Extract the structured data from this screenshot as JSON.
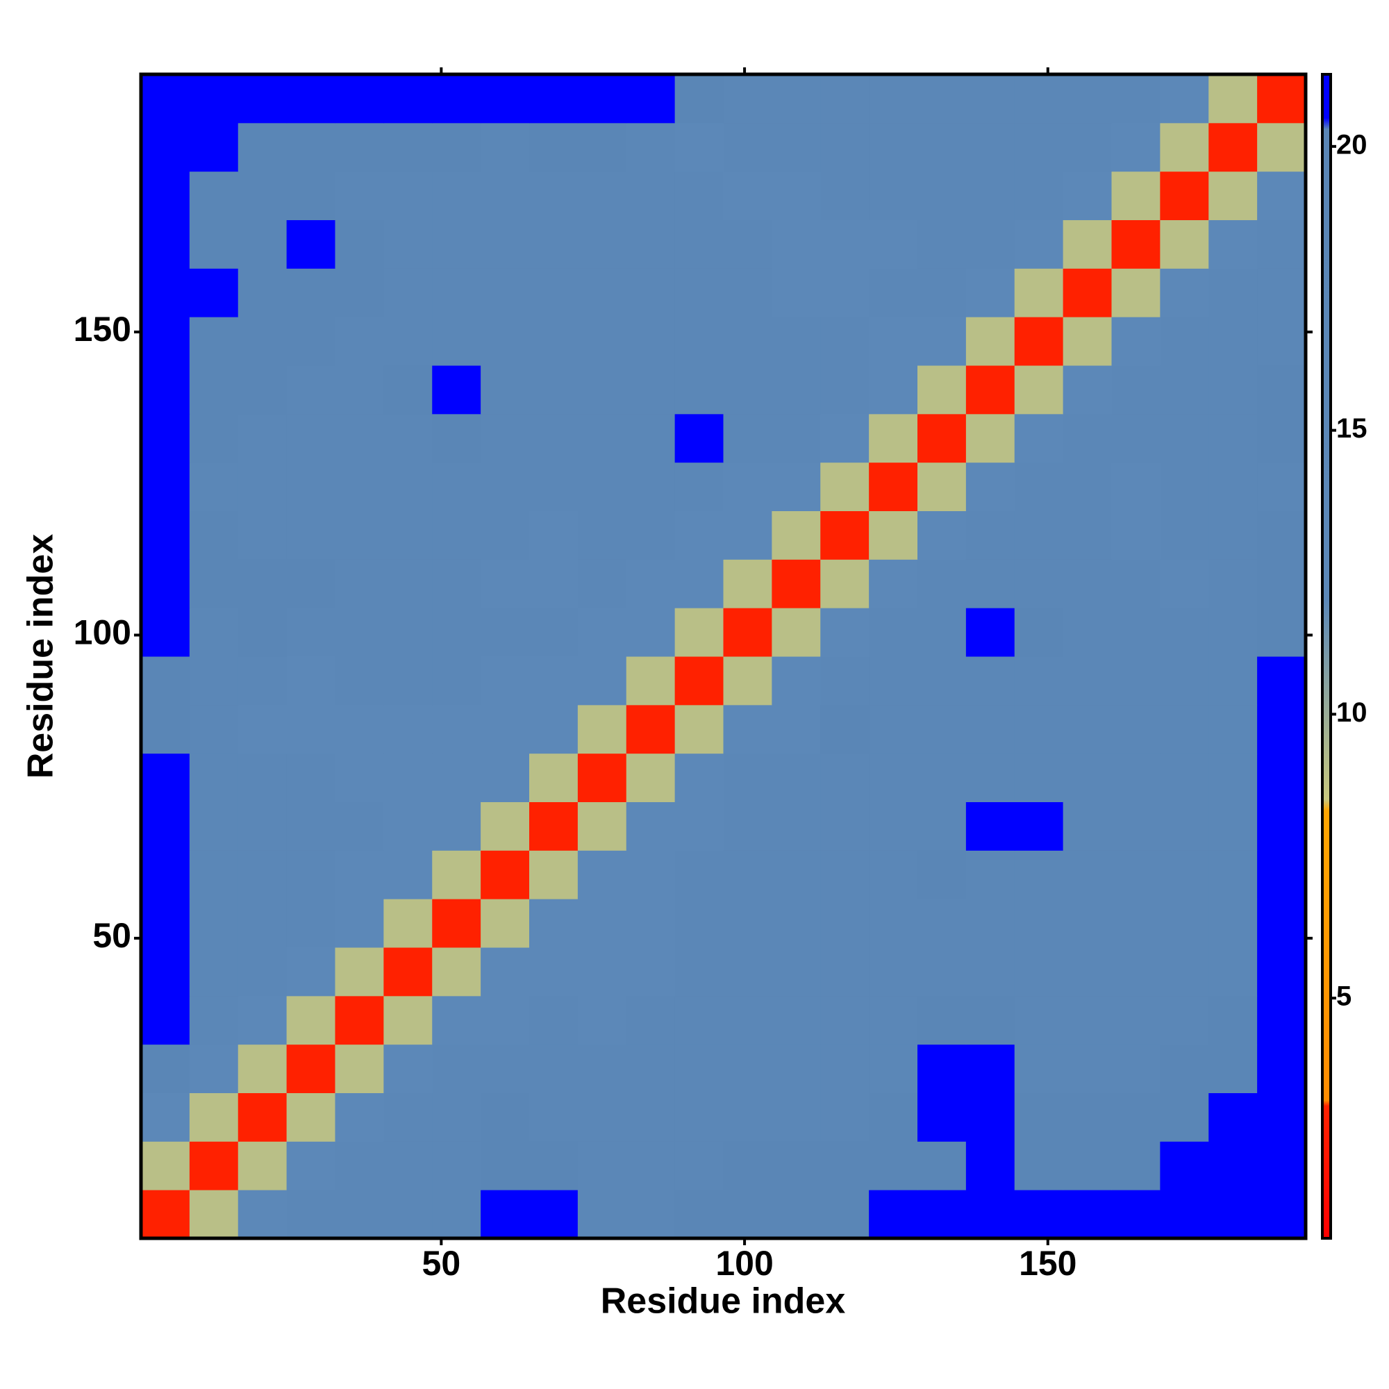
{
  "chart_data": {
    "type": "heatmap",
    "x_label": "Residue index",
    "y_label": "Residue index",
    "x": [
      4.5,
      12.5,
      20.5,
      28.5,
      36.5,
      44.5,
      52.5,
      60.5,
      68.5,
      76.5,
      84.5,
      92.5,
      100.5,
      108.5,
      116.5,
      124.5,
      132.5,
      140.5,
      148.5,
      156.5,
      164.5,
      172.5,
      180.5,
      188.5
    ],
    "y": [
      4.5,
      12.5,
      20.5,
      28.5,
      36.5,
      44.5,
      52.5,
      60.5,
      68.5,
      76.5,
      84.5,
      92.5,
      100.5,
      108.5,
      116.5,
      124.5,
      132.5,
      140.5,
      148.5,
      156.5,
      164.5,
      172.5,
      180.5,
      188.5
    ],
    "z": [
      [
        3,
        9,
        13,
        16,
        18,
        17,
        18,
        21,
        21,
        17,
        18,
        19,
        20,
        20,
        20,
        21,
        21,
        21,
        21,
        21,
        21,
        21,
        21,
        21
      ],
      [
        9,
        3,
        9,
        13,
        15,
        16,
        16,
        20,
        20,
        16,
        16,
        18,
        19,
        19,
        19,
        20,
        20,
        21,
        20,
        20,
        20,
        21,
        21,
        21
      ],
      [
        13,
        9,
        3,
        9,
        13,
        15,
        16,
        19,
        16,
        15,
        15,
        17,
        18,
        18,
        18,
        19,
        21,
        21,
        19,
        20,
        19,
        20,
        21,
        21
      ],
      [
        20,
        13,
        9,
        3,
        9,
        13,
        15,
        16,
        15,
        15,
        16,
        16,
        17,
        17,
        17,
        18,
        21,
        21,
        18,
        18,
        18,
        19,
        20,
        21
      ],
      [
        21,
        16,
        14,
        9,
        3,
        9,
        13,
        14,
        15,
        14,
        16,
        16,
        16,
        17,
        16,
        17,
        20,
        20,
        17,
        18,
        18,
        18,
        19,
        21
      ],
      [
        21,
        16,
        16,
        13,
        9,
        3,
        9,
        13,
        14,
        12,
        14,
        16,
        16,
        16,
        16,
        17,
        18,
        18,
        17,
        17,
        17,
        17,
        18,
        21
      ],
      [
        21,
        17,
        16,
        15,
        13,
        9,
        3,
        9,
        12,
        13,
        14,
        15,
        16,
        16,
        16,
        16,
        16,
        16,
        16,
        16,
        16,
        16,
        17,
        21
      ],
      [
        21,
        18,
        16,
        16,
        14,
        13,
        9,
        3,
        9,
        12,
        14,
        16,
        16,
        16,
        16,
        16,
        19,
        18,
        16,
        16,
        16,
        16,
        16,
        21
      ],
      [
        21,
        18,
        16,
        16,
        15,
        13,
        12,
        9,
        3,
        9,
        13,
        14,
        16,
        15,
        16,
        16,
        18,
        21,
        21,
        16,
        16,
        16,
        16,
        21
      ],
      [
        21,
        17,
        15,
        15,
        14,
        12,
        13,
        12,
        9,
        3,
        9,
        13,
        15,
        15,
        15,
        17,
        17,
        16,
        16,
        17,
        16,
        16,
        17,
        21
      ],
      [
        20,
        16,
        14,
        14,
        13,
        12,
        14,
        14,
        13,
        9,
        3,
        9,
        13,
        14,
        19,
        16,
        16,
        16,
        16,
        16,
        16,
        16,
        16,
        21
      ],
      [
        20,
        17,
        15,
        14,
        15,
        15,
        15,
        14,
        14,
        13,
        9,
        3,
        9,
        13,
        15,
        16,
        16,
        17,
        17,
        16,
        16,
        17,
        17,
        21
      ],
      [
        21,
        18,
        19,
        16,
        16,
        16,
        16,
        15,
        15,
        14,
        13,
        9,
        3,
        9,
        13,
        15,
        16,
        21,
        19,
        16,
        16,
        15,
        15,
        20
      ],
      [
        21,
        19,
        19,
        19,
        18,
        16,
        16,
        14,
        14,
        15,
        14,
        13,
        9,
        3,
        9,
        13,
        15,
        16,
        16,
        16,
        15,
        14,
        15,
        19
      ],
      [
        21,
        19,
        18,
        17,
        17,
        16,
        16,
        16,
        14,
        15,
        15,
        14,
        13,
        9,
        3,
        9,
        13,
        15,
        16,
        16,
        13,
        15,
        16,
        19
      ],
      [
        21,
        18,
        17,
        17,
        16,
        16,
        16,
        16,
        16,
        16,
        15,
        15,
        14,
        13,
        9,
        3,
        9,
        13,
        15,
        15,
        14,
        15,
        16,
        18
      ],
      [
        21,
        19,
        18,
        18,
        18,
        17,
        20,
        18,
        16,
        16,
        16,
        21,
        16,
        15,
        13,
        9,
        3,
        9,
        13,
        15,
        15,
        16,
        17,
        19
      ],
      [
        21,
        20,
        19,
        18,
        18,
        19,
        21,
        17,
        16,
        16,
        16,
        17,
        16,
        16,
        15,
        13,
        9,
        3,
        9,
        13,
        15,
        16,
        16,
        19
      ],
      [
        21,
        20,
        19,
        19,
        18,
        18,
        18,
        16,
        16,
        16,
        16,
        16,
        16,
        16,
        15,
        14,
        13,
        9,
        3,
        9,
        13,
        15,
        16,
        18
      ],
      [
        21,
        21,
        20,
        20,
        19,
        17,
        17,
        16,
        16,
        16,
        16,
        16,
        15,
        14,
        13,
        15,
        15,
        13,
        9,
        3,
        9,
        13,
        15,
        17
      ],
      [
        21,
        20,
        20,
        21,
        20,
        18,
        17,
        16,
        16,
        16,
        16,
        16,
        15,
        14,
        12,
        14,
        15,
        15,
        13,
        9,
        3,
        9,
        13,
        16
      ],
      [
        21,
        20,
        19,
        19,
        18,
        16,
        16,
        16,
        16,
        16,
        15,
        15,
        14,
        14,
        15,
        15,
        15,
        15,
        15,
        13,
        9,
        3,
        9,
        13
      ],
      [
        21,
        21,
        20,
        20,
        20,
        19,
        19,
        18,
        19,
        20,
        15,
        14,
        15,
        15,
        15,
        16,
        16,
        15,
        16,
        15,
        13,
        9,
        3,
        9
      ],
      [
        21,
        21,
        21,
        21,
        21,
        21,
        21,
        21,
        21,
        21,
        21,
        19,
        17,
        16,
        16,
        17,
        16,
        16,
        16,
        15,
        16,
        13,
        9,
        3
      ]
    ],
    "xlim": [
      0.5,
      192.5
    ],
    "ylim": [
      0.5,
      192.5
    ],
    "xticks": [
      50,
      100,
      150
    ],
    "yticks": [
      50,
      100,
      150
    ],
    "zlim": [
      0.77,
      21.27
    ],
    "zticks": [
      5,
      10,
      15,
      20
    ],
    "color_stops": [
      {
        "value": 0.77,
        "color": "#ff0000"
      },
      {
        "value": 3.1,
        "color": "#ff2200"
      },
      {
        "value": 3.2,
        "color": "#ff8c00"
      },
      {
        "value": 8.3,
        "color": "#ffa500"
      },
      {
        "value": 8.5,
        "color": "#c8c87f"
      },
      {
        "value": 12,
        "color": "#5c88b8"
      },
      {
        "value": 20.3,
        "color": "#5a86b6"
      },
      {
        "value": 20.5,
        "color": "#0000ff"
      },
      {
        "value": 21.27,
        "color": "#0000ff"
      }
    ]
  }
}
